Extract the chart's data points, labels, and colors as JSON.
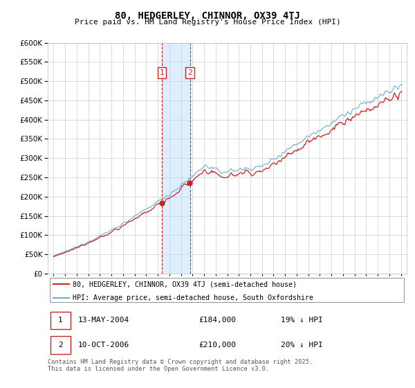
{
  "title": "80, HEDGERLEY, CHINNOR, OX39 4TJ",
  "subtitle": "Price paid vs. HM Land Registry's House Price Index (HPI)",
  "legend_line1": "80, HEDGERLEY, CHINNOR, OX39 4TJ (semi-detached house)",
  "legend_line2": "HPI: Average price, semi-detached house, South Oxfordshire",
  "footer": "Contains HM Land Registry data © Crown copyright and database right 2025.\nThis data is licensed under the Open Government Licence v3.0.",
  "sale1_date": "13-MAY-2004",
  "sale1_price": 184000,
  "sale1_hpi_diff": "19% ↓ HPI",
  "sale2_date": "10-OCT-2006",
  "sale2_price": 210000,
  "sale2_hpi_diff": "20% ↓ HPI",
  "sale1_year": 2004.37,
  "sale2_year": 2006.78,
  "ylim_max": 600000,
  "xlim_start": 1994.5,
  "xlim_end": 2025.5,
  "hpi_color": "#6baed6",
  "price_color": "#cc2222",
  "shade_color": "#ddeeff",
  "background_color": "#ffffff",
  "grid_color": "#cccccc"
}
